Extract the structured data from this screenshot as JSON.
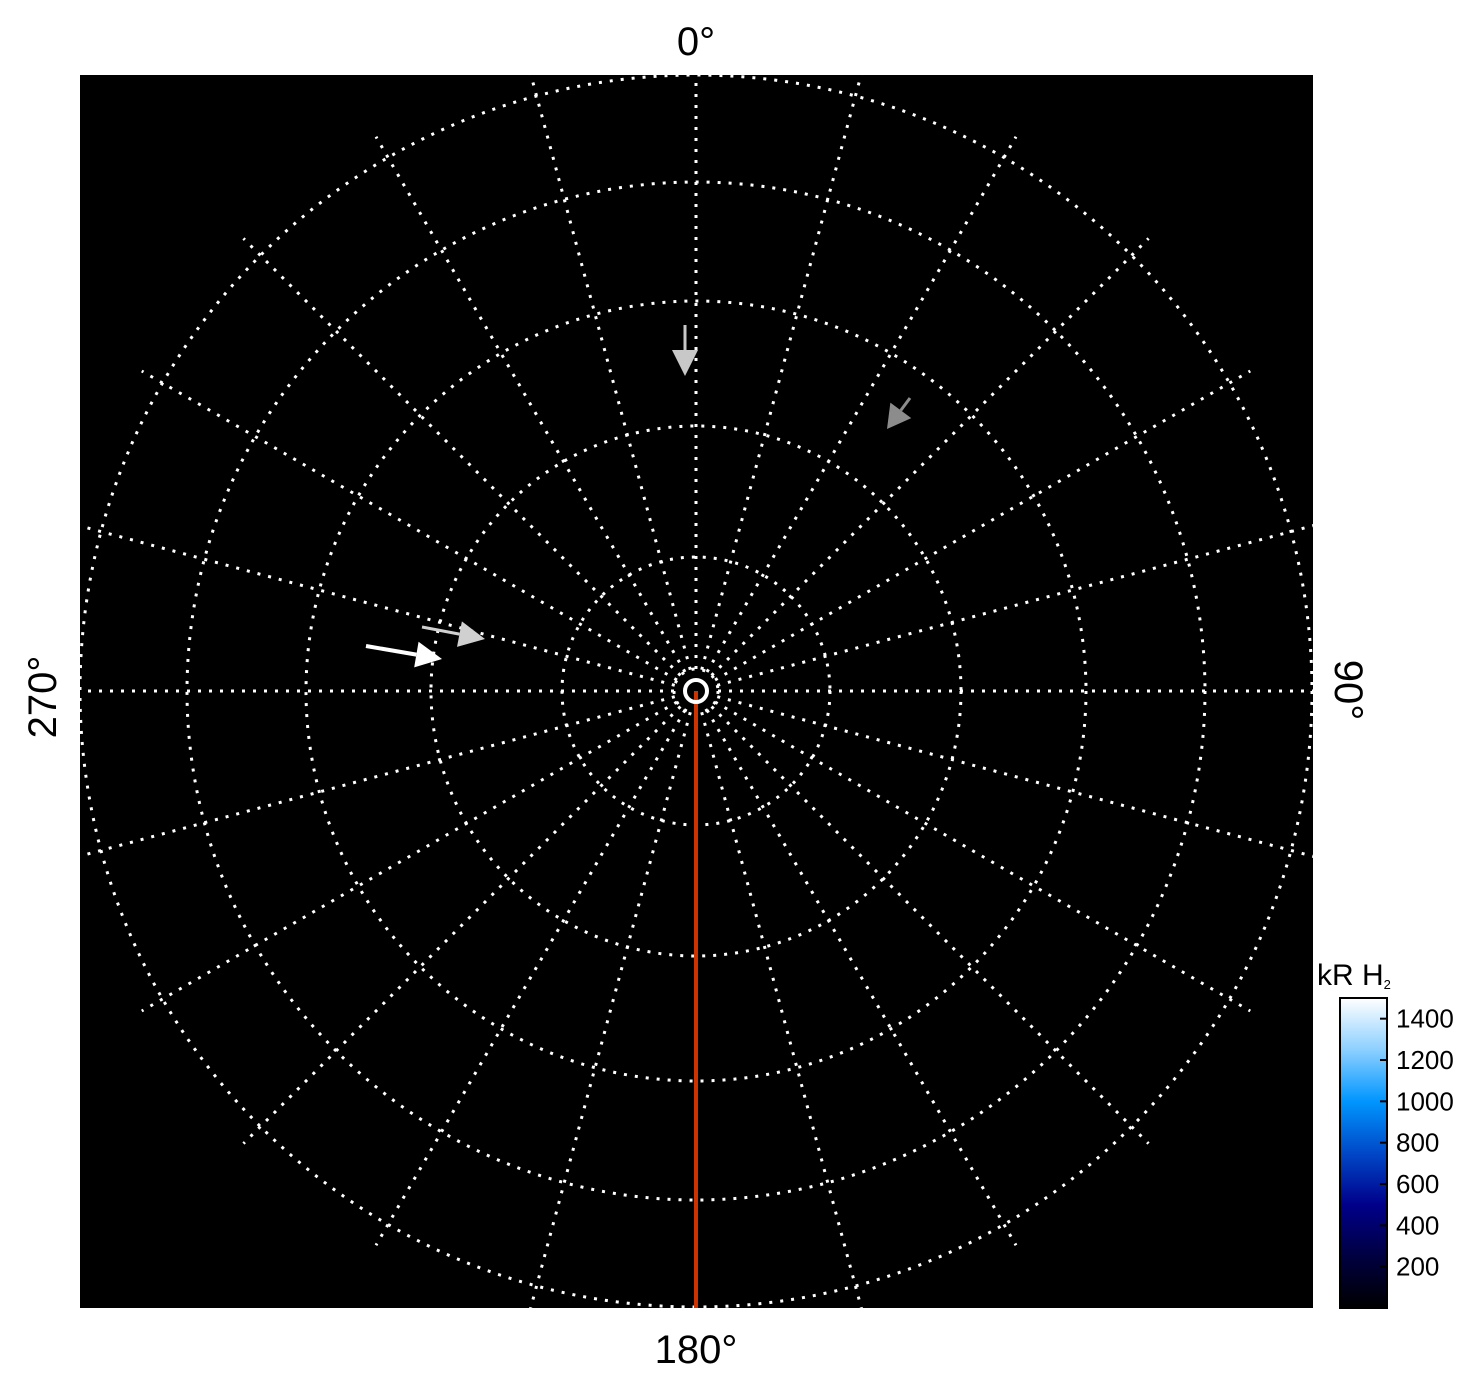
{
  "chart_data": {
    "type": "polar",
    "angle_labels": {
      "top": "0°",
      "right": "90°",
      "bottom": "180°",
      "left": "270°"
    },
    "angular_grid_step_deg": 15,
    "radial_rings": 5,
    "grid": true,
    "background": "#000000",
    "grid_color": "#ffffff",
    "reference_line": {
      "angle_deg": 180,
      "color": "#cc3300"
    },
    "arrows": [
      {
        "color": "#c8c8c8",
        "direction": "down"
      },
      {
        "color": "#8c8c8c",
        "direction": "down-left"
      },
      {
        "color": "#d0d0d0",
        "direction": "right"
      },
      {
        "color": "#ffffff",
        "direction": "right"
      }
    ],
    "colorbar": {
      "title": "kR H",
      "title_subscript": "2",
      "range": [
        0,
        1500
      ],
      "ticks": [
        "200",
        "400",
        "600",
        "800",
        "1000",
        "1200",
        "1400"
      ],
      "tick_values": [
        200,
        400,
        600,
        800,
        1000,
        1200,
        1400
      ],
      "colors": [
        "#000000",
        "#000040",
        "#00008a",
        "#0048c8",
        "#0096ff",
        "#8cd0ff",
        "#ffffff"
      ],
      "position": "bottom-right"
    }
  }
}
